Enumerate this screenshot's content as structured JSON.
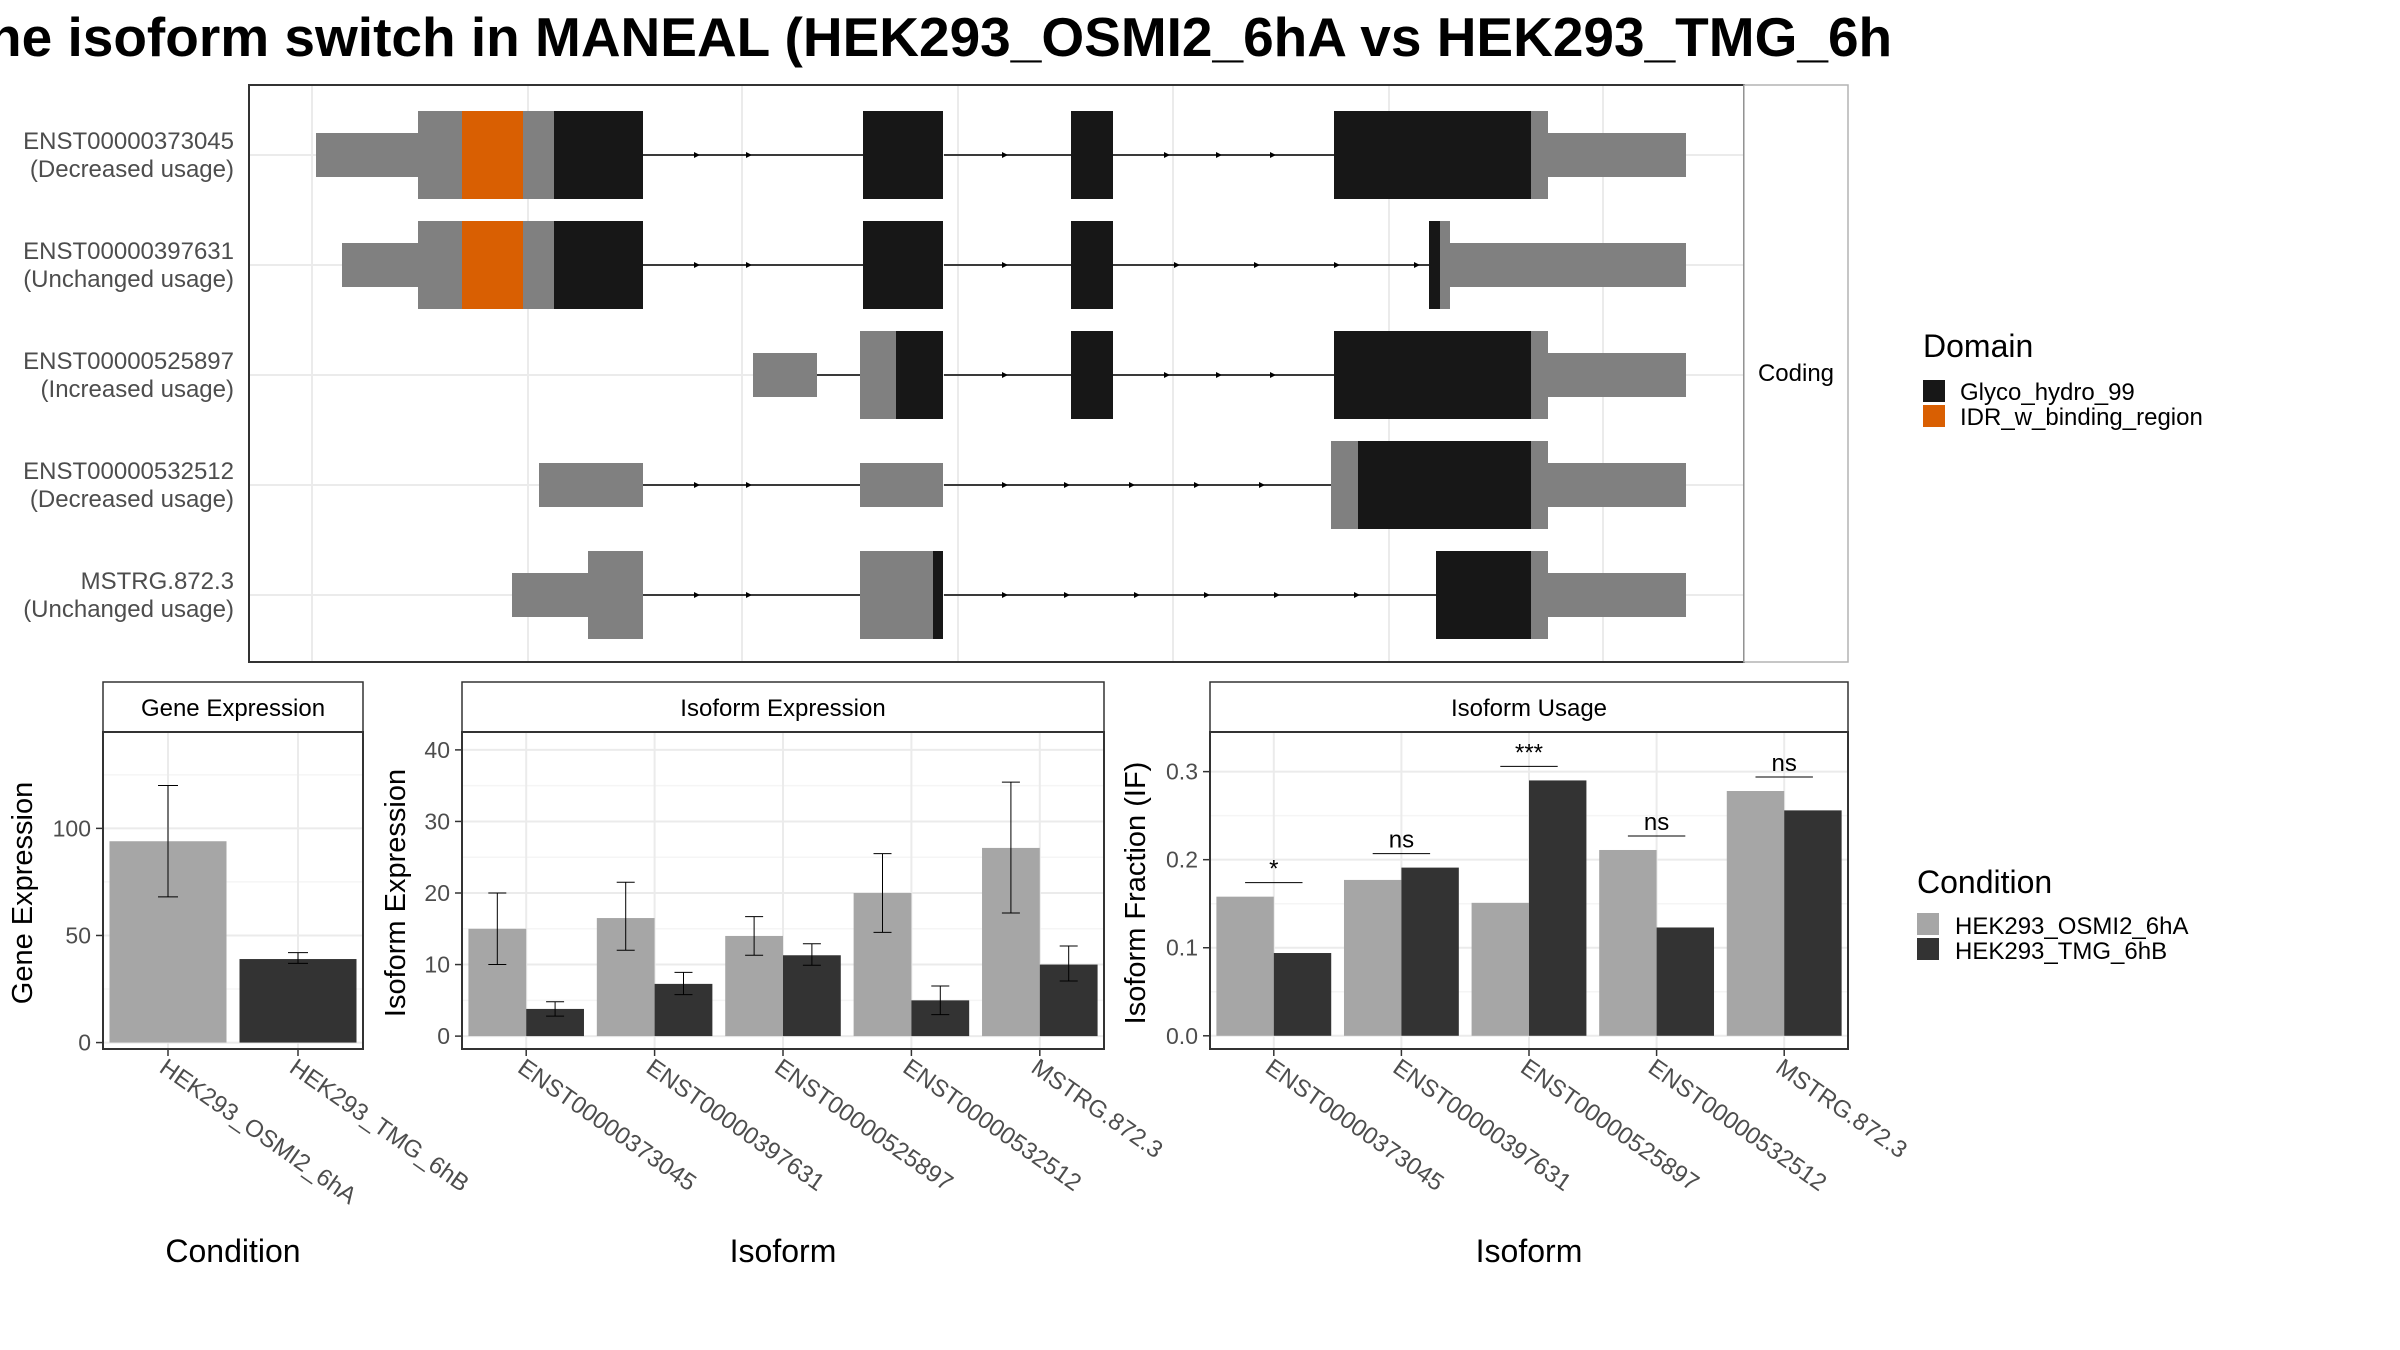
{
  "title": "ne isoform switch in MANEAL (HEK293_OSMI2_6hA vs HEK293_TMG_6h",
  "colors": {
    "utr": "#808080",
    "cds": "#171717",
    "idr": "#D95F02",
    "cond_a": "#a6a6a6",
    "cond_b": "#333333",
    "grid": "#ebebeb",
    "panel_border": "#333333",
    "strip_border": "#b3b3b3"
  },
  "chart_data": [
    {
      "id": "isoform_structure",
      "type": "gene_structure",
      "facet_label": "Coding",
      "isoforms": [
        {
          "id": "ENST00000373045",
          "usage": "(Decreased usage)"
        },
        {
          "id": "ENST00000397631",
          "usage": "(Unchanged usage)"
        },
        {
          "id": "ENST00000525897",
          "usage": "(Increased usage)"
        },
        {
          "id": "ENST00000532512",
          "usage": "(Decreased usage)"
        },
        {
          "id": "MSTRG.872.3",
          "usage": "(Unchanged usage)"
        }
      ],
      "legend": {
        "title": "Domain",
        "entries": [
          {
            "label": "Glyco_hydro_99",
            "color": "#171717"
          },
          {
            "label": "IDR_w_binding_region",
            "color": "#D95F02"
          }
        ]
      }
    },
    {
      "id": "gene_expression",
      "type": "bar",
      "strip": "Gene Expression",
      "xlabel": "Condition",
      "ylabel": "Gene Expression",
      "categories": [
        "HEK293_OSMI2_6hA",
        "HEK293_TMG_6hB"
      ],
      "values": [
        94,
        39
      ],
      "error": [
        [
          68,
          120
        ],
        [
          37,
          42
        ]
      ],
      "ylim": [
        -3,
        145
      ],
      "yticks": [
        0,
        50,
        100
      ]
    },
    {
      "id": "isoform_expression",
      "type": "bar",
      "strip": "Isoform Expression",
      "xlabel": "Isoform",
      "ylabel": "Isoform Expression",
      "categories": [
        "ENST00000373045",
        "ENST00000397631",
        "ENST00000525897",
        "ENST00000532512",
        "MSTRG.872.3"
      ],
      "series": [
        {
          "name": "HEK293_OSMI2_6hA",
          "values": [
            15,
            16.5,
            14,
            20,
            26.3
          ],
          "error": [
            [
              10,
              20
            ],
            [
              12,
              21.5
            ],
            [
              11.3,
              16.7
            ],
            [
              14.5,
              25.5
            ],
            [
              17.2,
              35.5
            ]
          ]
        },
        {
          "name": "HEK293_TMG_6hB",
          "values": [
            3.8,
            7.3,
            11.3,
            5,
            10
          ],
          "error": [
            [
              2.8,
              4.8
            ],
            [
              5.8,
              8.9
            ],
            [
              9.9,
              12.9
            ],
            [
              3,
              7
            ],
            [
              7.7,
              12.6
            ]
          ]
        }
      ],
      "ylim": [
        -1.8,
        42.5
      ],
      "yticks": [
        0,
        10,
        20,
        30,
        40
      ]
    },
    {
      "id": "isoform_usage",
      "type": "bar",
      "strip": "Isoform Usage",
      "xlabel": "Isoform",
      "ylabel": "Isoform Fraction (IF)",
      "categories": [
        "ENST00000373045",
        "ENST00000397631",
        "ENST00000525897",
        "ENST00000532512",
        "MSTRG.872.3"
      ],
      "series": [
        {
          "name": "HEK293_OSMI2_6hA",
          "values": [
            0.158,
            0.177,
            0.151,
            0.211,
            0.278
          ]
        },
        {
          "name": "HEK293_TMG_6hB",
          "values": [
            0.094,
            0.191,
            0.29,
            0.123,
            0.256
          ]
        }
      ],
      "significance": [
        "*",
        "ns",
        "***",
        "ns",
        "ns"
      ],
      "ylim": [
        -0.015,
        0.345
      ],
      "yticks": [
        "0.0",
        "0.1",
        "0.2",
        "0.3"
      ]
    }
  ],
  "condition_legend": {
    "title": "Condition",
    "entries": [
      {
        "label": "HEK293_OSMI2_6hA",
        "color": "#a6a6a6"
      },
      {
        "label": "HEK293_TMG_6hB",
        "color": "#333333"
      }
    ]
  }
}
